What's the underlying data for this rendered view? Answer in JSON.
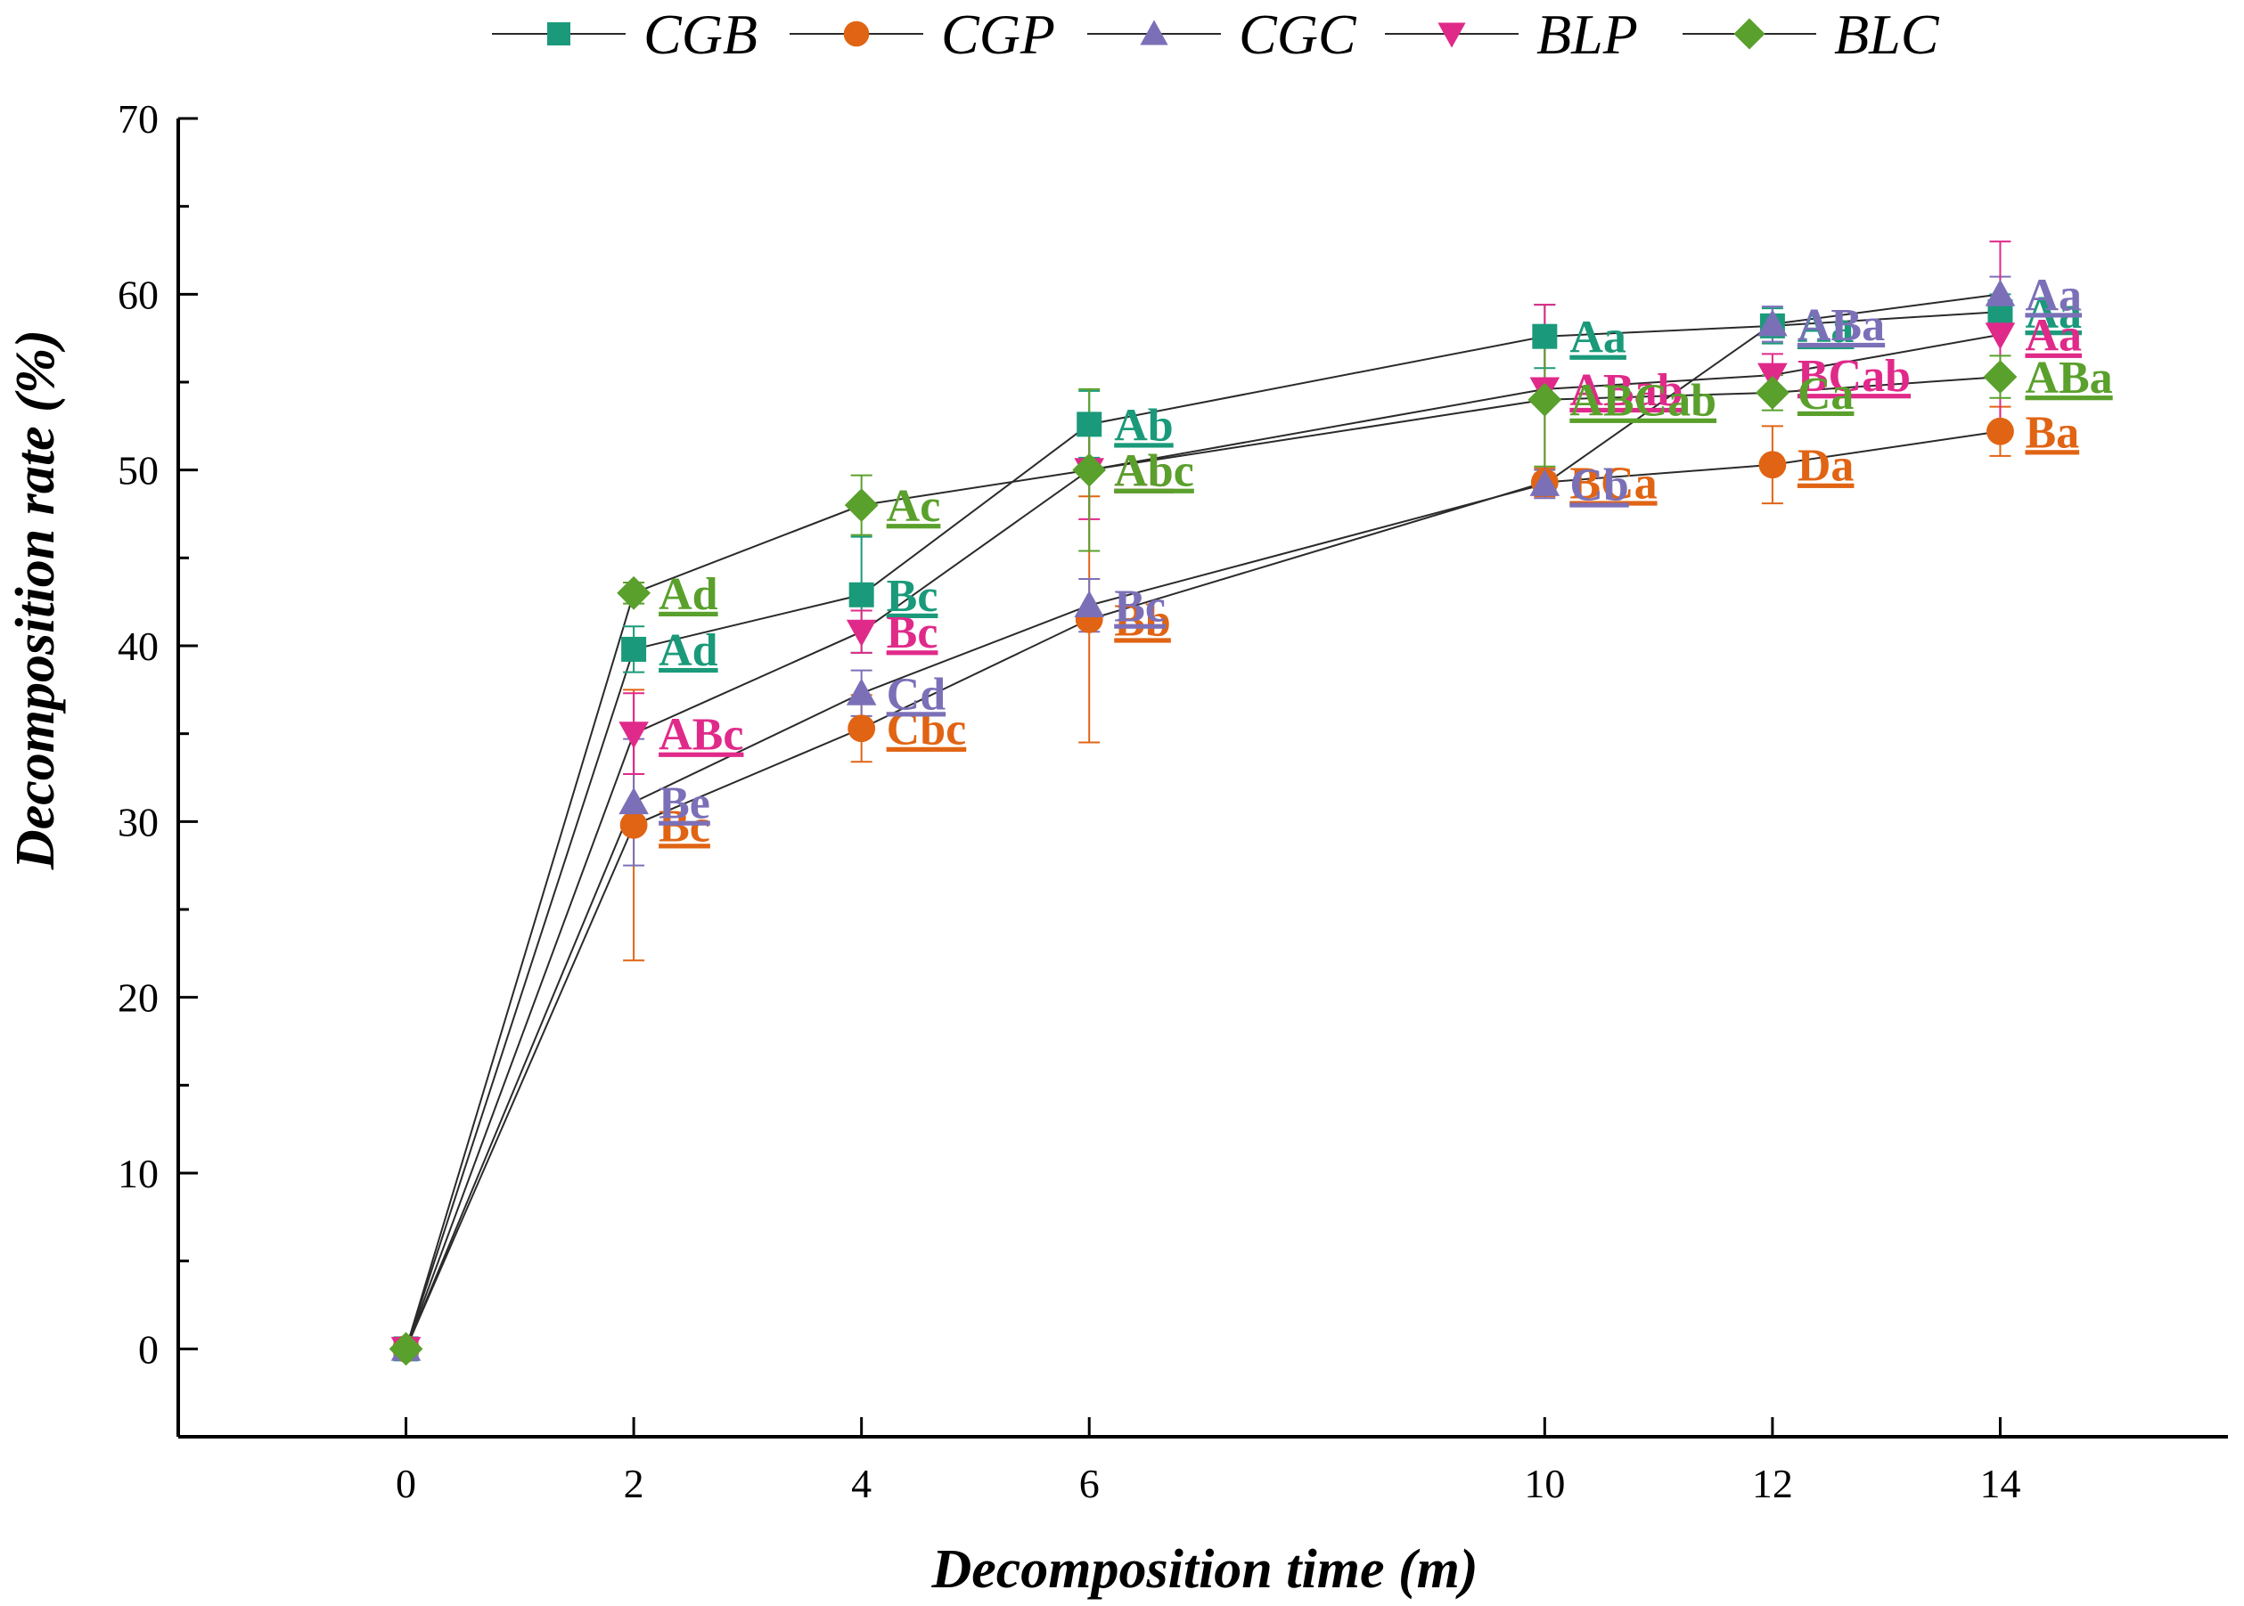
{
  "chart_data": {
    "type": "line",
    "title": "",
    "xlabel": "Decomposition time (m)",
    "ylabel": "Decomposition rate (%)",
    "x": [
      0,
      2,
      4,
      6,
      10,
      12,
      14
    ],
    "x_ticks": [
      "0",
      "2",
      "4",
      "6",
      "10",
      "12",
      "14"
    ],
    "xlim": [
      -2.0,
      16.0
    ],
    "ylim": [
      -5,
      70
    ],
    "y_ticks": [
      "0",
      "10",
      "20",
      "30",
      "40",
      "50",
      "60",
      "70"
    ],
    "legend_position": "top",
    "series": [
      {
        "name": "CGB",
        "color": "#1a9a7a",
        "marker": "square",
        "values": [
          0,
          39.8,
          42.9,
          52.6,
          57.6,
          58.2,
          59.0
        ],
        "errors": [
          0,
          1.3,
          3.3,
          1.9,
          1.8,
          1.0,
          1.0
        ],
        "labels": [
          "",
          "Ad",
          "Bc",
          "Ab",
          "Aa",
          "Aa",
          "Aa"
        ]
      },
      {
        "name": "CGP",
        "color": "#e06414",
        "marker": "circle",
        "values": [
          0,
          29.8,
          35.3,
          41.5,
          49.3,
          50.3,
          52.2
        ],
        "errors": [
          0,
          7.7,
          1.9,
          7.0,
          0.8,
          2.2,
          1.4
        ],
        "labels": [
          "",
          "Bc",
          "Cbc",
          "Bb",
          "BCa",
          "Da",
          "Ba"
        ]
      },
      {
        "name": "CGC",
        "color": "#7b70b8",
        "marker": "triangle-up",
        "values": [
          0,
          31.1,
          37.3,
          42.3,
          49.2,
          58.3,
          60.0
        ],
        "errors": [
          0,
          3.6,
          1.3,
          1.5,
          0.8,
          1.0,
          1.0
        ],
        "labels": [
          "",
          "Be",
          "Cd",
          "Bc",
          "Cb",
          "ABa",
          "Aa"
        ]
      },
      {
        "name": "BLP",
        "color": "#e02a8a",
        "marker": "triangle-down",
        "values": [
          0,
          35.0,
          40.8,
          50.0,
          54.6,
          55.4,
          57.7
        ],
        "errors": [
          0,
          2.3,
          1.2,
          2.8,
          4.8,
          1.2,
          5.3
        ],
        "labels": [
          "",
          "ABc",
          "Bc",
          "Ab",
          "ABab",
          "BCab",
          "Aa"
        ]
      },
      {
        "name": "BLC",
        "color": "#5aa02c",
        "marker": "diamond",
        "values": [
          0,
          43.0,
          48.0,
          50.0,
          54.0,
          54.4,
          55.3
        ],
        "errors": [
          0,
          0.6,
          1.7,
          4.6,
          3.8,
          1.0,
          1.2
        ],
        "labels": [
          "",
          "Ad",
          "Ac",
          "Abc",
          "ABCab",
          "Ca",
          "ABa"
        ]
      }
    ]
  }
}
